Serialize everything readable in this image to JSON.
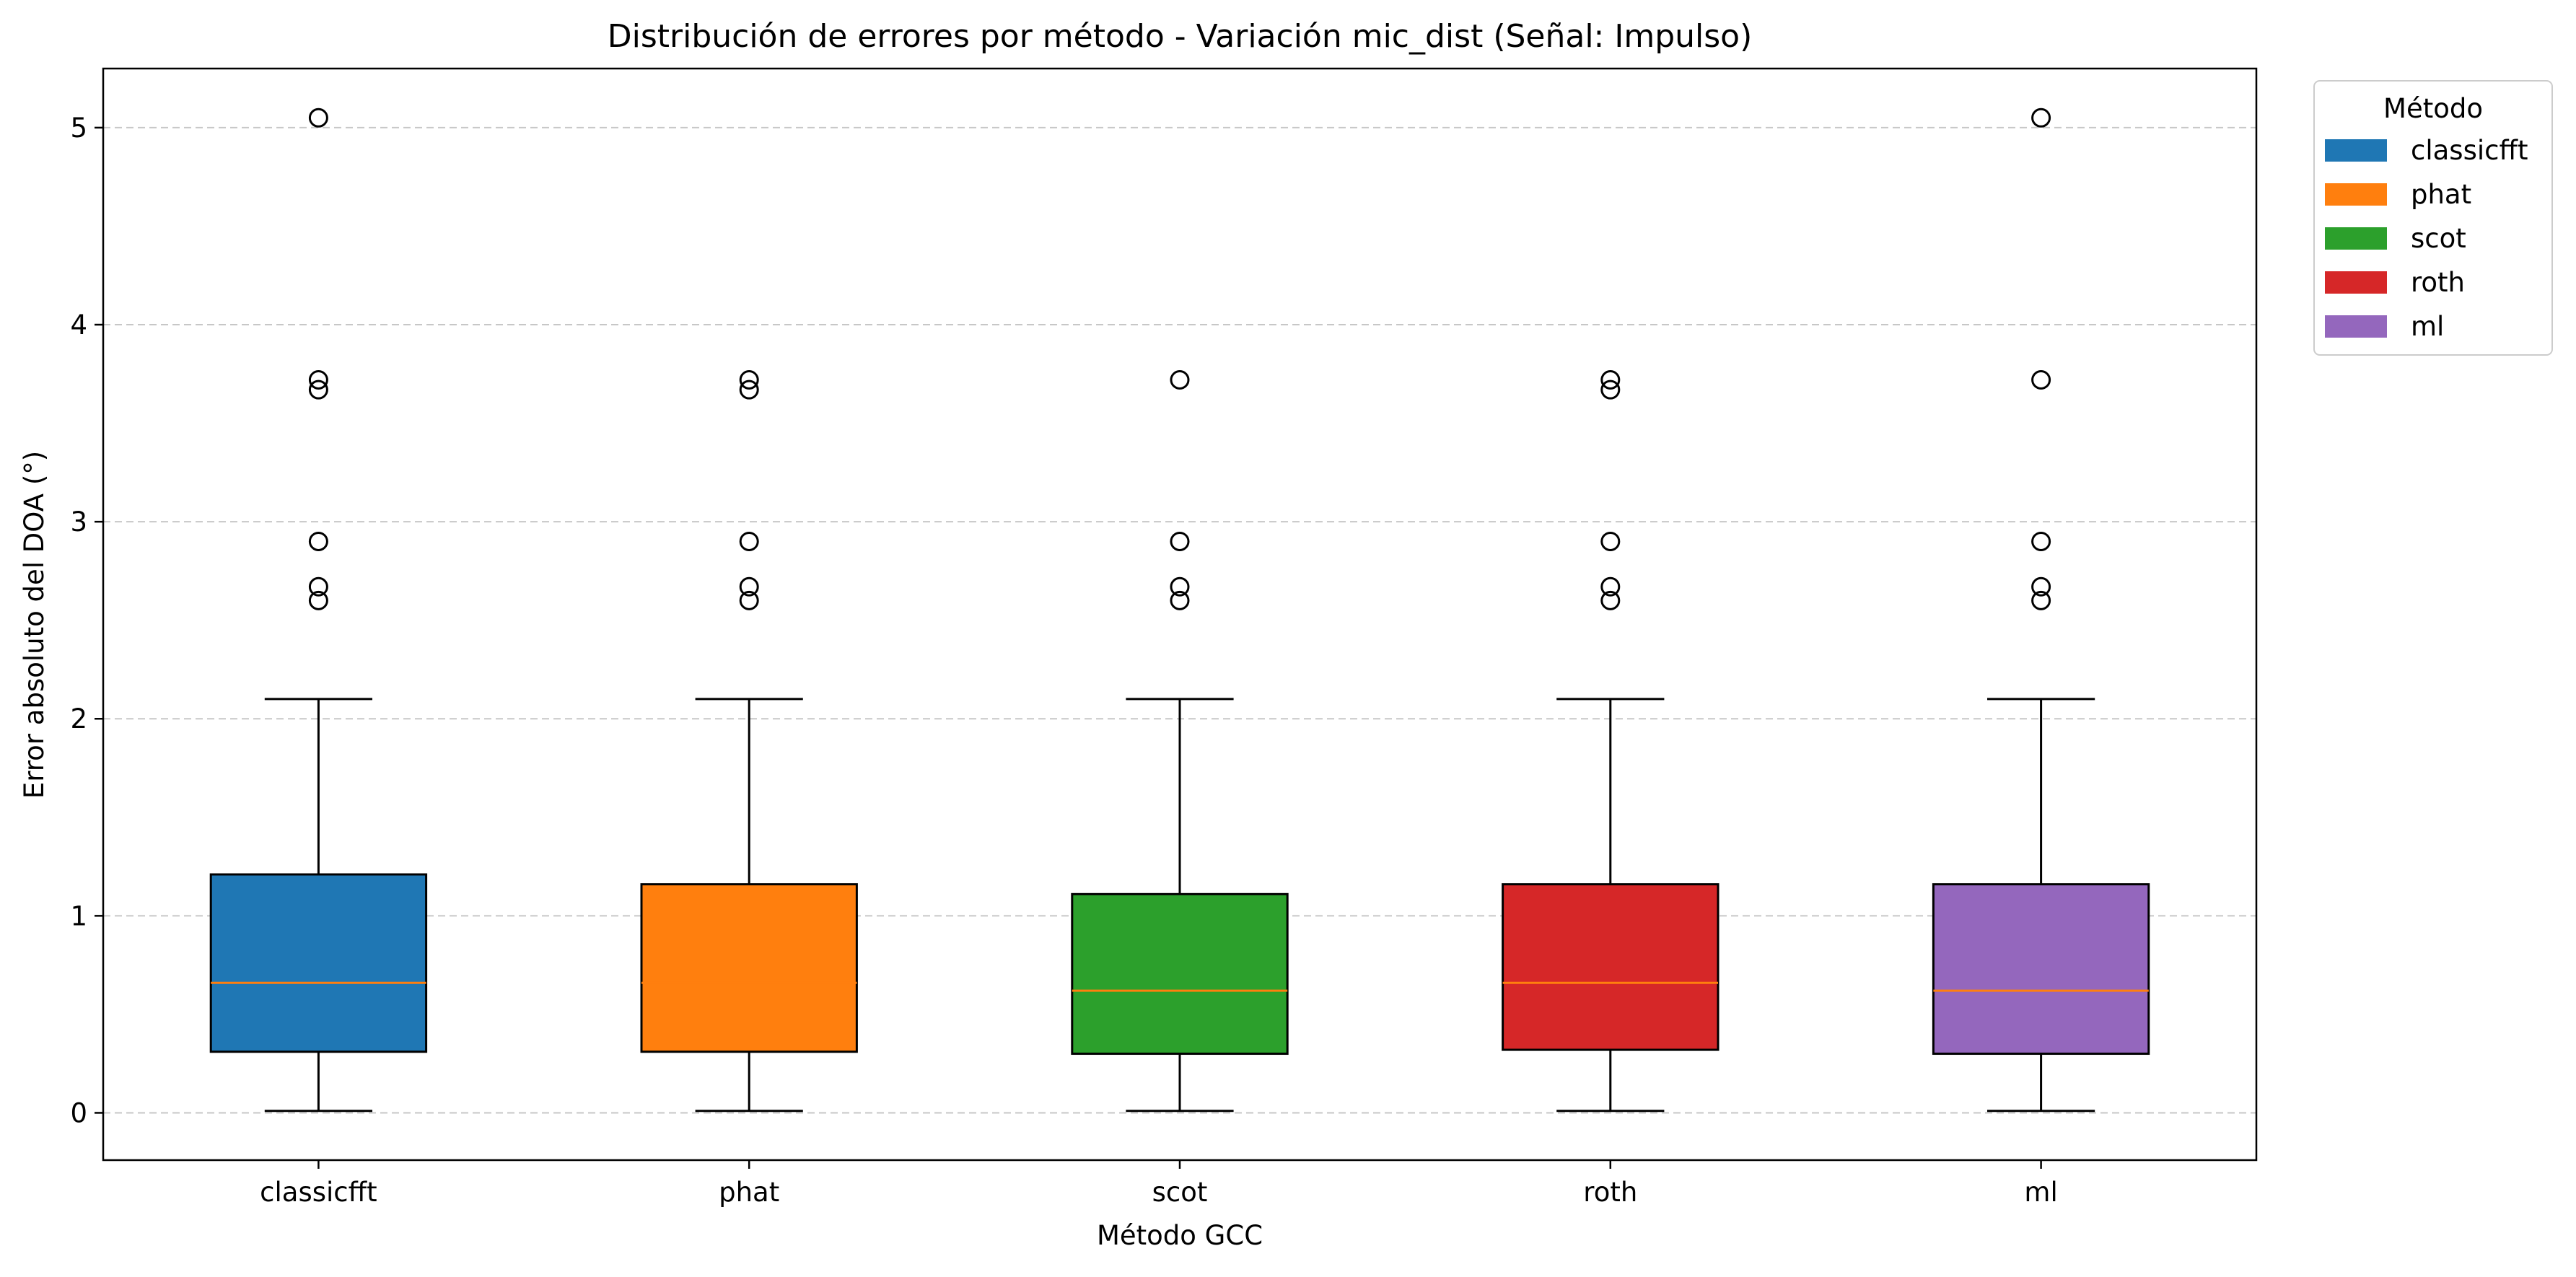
{
  "chart_data": {
    "type": "boxplot",
    "title": "Distribución de errores por método - Variación mic_dist (Señal: Impulso)",
    "xlabel": "Método GCC",
    "ylabel": "Error absoluto del DOA (°)",
    "ylim": [
      -0.24,
      5.3
    ],
    "yticks": [
      0,
      1,
      2,
      3,
      4,
      5
    ],
    "grid": "y-dashed",
    "legend": {
      "title": "Método",
      "placement": "upper-right-outside",
      "entries": [
        "classicfft",
        "phat",
        "scot",
        "roth",
        "ml"
      ]
    },
    "categories": [
      "classicfft",
      "phat",
      "scot",
      "roth",
      "ml"
    ],
    "colors": [
      "#1f77b4",
      "#ff7f0e",
      "#2ca02c",
      "#d62728",
      "#9467bd"
    ],
    "median_color": "#ff7f0e",
    "boxes": [
      {
        "name": "classicfft",
        "whisker_low": 0.01,
        "q1": 0.31,
        "median": 0.66,
        "q3": 1.21,
        "whisker_high": 2.1,
        "outliers": [
          5.05,
          3.72,
          3.67,
          2.9,
          2.67,
          2.6
        ]
      },
      {
        "name": "phat",
        "whisker_low": 0.01,
        "q1": 0.31,
        "median": 0.66,
        "q3": 1.16,
        "whisker_high": 2.1,
        "outliers": [
          3.72,
          3.67,
          2.9,
          2.67,
          2.6
        ]
      },
      {
        "name": "scot",
        "whisker_low": 0.01,
        "q1": 0.3,
        "median": 0.62,
        "q3": 1.11,
        "whisker_high": 2.1,
        "outliers": [
          3.72,
          2.9,
          2.67,
          2.6
        ]
      },
      {
        "name": "roth",
        "whisker_low": 0.01,
        "q1": 0.32,
        "median": 0.66,
        "q3": 1.16,
        "whisker_high": 2.1,
        "outliers": [
          3.72,
          3.67,
          2.9,
          2.67,
          2.6
        ]
      },
      {
        "name": "ml",
        "whisker_low": 0.01,
        "q1": 0.3,
        "median": 0.62,
        "q3": 1.16,
        "whisker_high": 2.1,
        "outliers": [
          5.05,
          3.72,
          2.9,
          2.67,
          2.6
        ]
      }
    ]
  }
}
